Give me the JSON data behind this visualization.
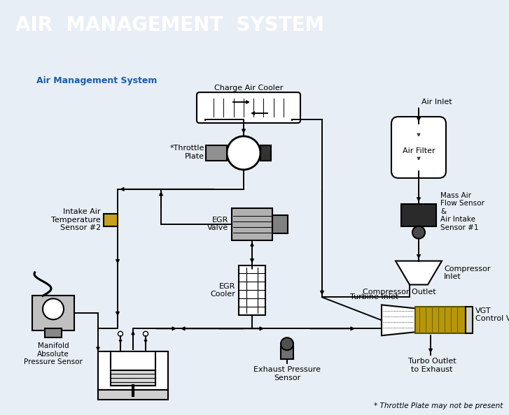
{
  "title": "AIR  MANAGEMENT  SYSTEM",
  "subtitle": "Air Management System",
  "title_bg": "#1a5fa8",
  "title_fg": "#ffffff",
  "bg_color": "#e8eef5",
  "diagram_bg": "#ffffff",
  "footnote": "* Throttle Plate may not be present",
  "labels": {
    "charge_air_cooler": "Charge Air Cooler",
    "throttle_plate": "*Throttle\nPlate",
    "egr_valve": "EGR\nValve",
    "egr_cooler": "EGR\nCooler",
    "intake_air_temp": "Intake Air\nTemperature\nSensor #2",
    "manifold_abs": "Manifold\nAbsolute\nPressure Sensor",
    "air_inlet": "Air Inlet",
    "air_filter": "Air Filter",
    "mass_air_flow": "Mass Air\nFlow Sensor\n&\nAir Intake\nSensor #1",
    "compressor_inlet": "Compressor\nInlet",
    "compressor_outlet": "Compressor Outlet",
    "turbine_inlet": "Turbine Inlet",
    "vgt": "VGT\nControl Valve",
    "turbo_outlet": "Turbo Outlet\nto Exhaust",
    "exhaust_pressure": "Exhaust Pressure\nSensor"
  }
}
